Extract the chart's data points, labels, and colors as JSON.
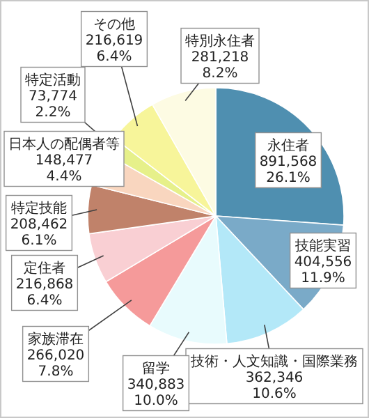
{
  "chart_data": {
    "type": "pie",
    "categories": [
      "永住者",
      "技能実習",
      "技術・人文知識・国際業務",
      "留学",
      "家族滞在",
      "定住者",
      "特定技能",
      "日本人の配偶者等",
      "特定活動",
      "その他",
      "特別永住者"
    ],
    "values": [
      891568,
      404556,
      362346,
      340883,
      266020,
      216868,
      208462,
      148477,
      73774,
      216619,
      281218
    ],
    "colors": [
      "#4f8fb0",
      "#7aaac8",
      "#b3e8f8",
      "#e8fbfd",
      "#f59a9a",
      "#f9cfd3",
      "#c0826a",
      "#f9d6bf",
      "#e6f08a",
      "#f7f59a",
      "#fdfbe3"
    ],
    "value_labels": [
      "891,568\n26.1%",
      "404,556\n11.9%",
      "362,346\n10.6%",
      "340,883\n10.0%",
      "266,020\n7.8%",
      "216,868\n6.4%",
      "208,462\n6.1%",
      "148,477\n4.4%",
      "73,774\n2.2%",
      "216,619\n6.4%",
      "281,218\n8.2%"
    ]
  }
}
